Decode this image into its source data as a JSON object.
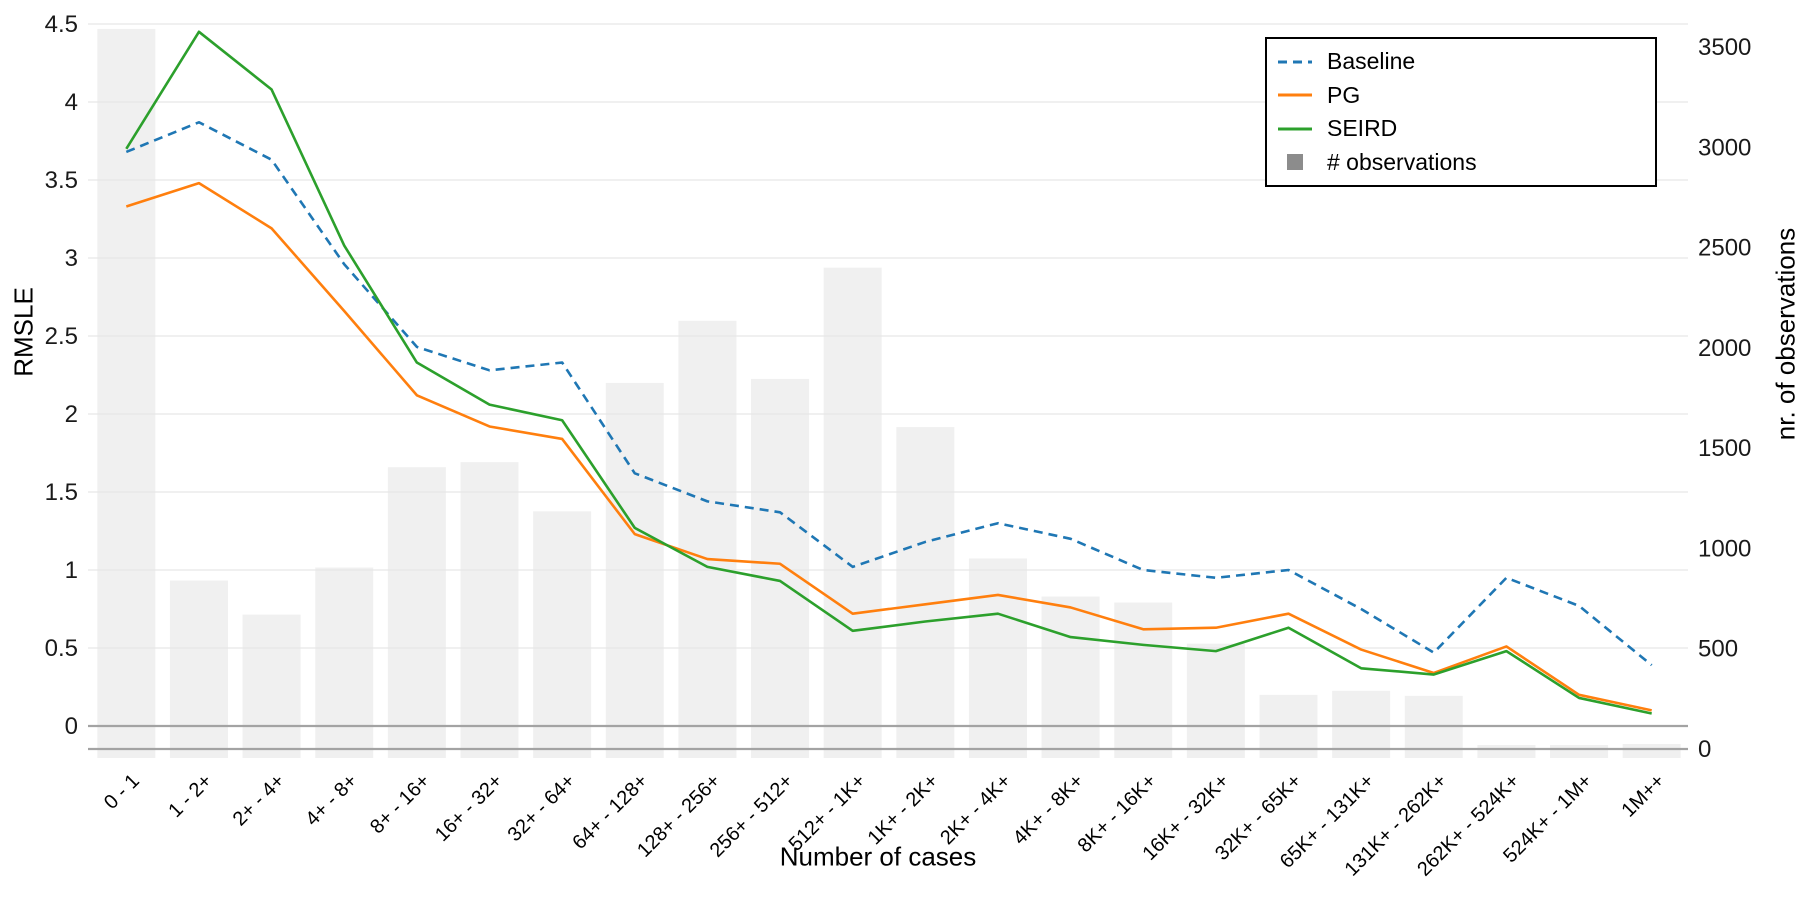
{
  "chart_data": {
    "type": "line-bar-combo",
    "title": "",
    "categories": [
      "0 - 1",
      "1 - 2+",
      "2+ - 4+",
      "4+ - 8+",
      "8+ - 16+",
      "16+ - 32+",
      "32+ - 64+",
      "64+ - 128+",
      "128+ - 256+",
      "256+ - 512+",
      "512+ - 1K+",
      "1K+ - 2K+",
      "2K+ - 4K+",
      "4K+ - 8K+",
      "8K+ - 16K+",
      "16K+ - 32K+",
      "32K+ - 65K+",
      "65K+ - 131K+",
      "131K+ - 262K+",
      "262K+ - 524K+",
      "524K+ - 1M+",
      "1M++"
    ],
    "series": [
      {
        "name": "Baseline",
        "type": "line",
        "line_style": "dashed",
        "color": "#1f77b4",
        "axis": "left",
        "values": [
          3.68,
          3.87,
          3.63,
          2.96,
          2.43,
          2.28,
          2.33,
          1.62,
          1.44,
          1.37,
          1.02,
          1.18,
          1.3,
          1.2,
          1.0,
          0.95,
          1.0,
          0.75,
          0.47,
          0.95,
          0.77,
          0.39
        ]
      },
      {
        "name": "PG",
        "type": "line",
        "line_style": "solid",
        "color": "#ff7f0e",
        "axis": "left",
        "values": [
          3.33,
          3.48,
          3.19,
          2.66,
          2.12,
          1.92,
          1.84,
          1.23,
          1.07,
          1.04,
          0.72,
          0.78,
          0.84,
          0.76,
          0.62,
          0.63,
          0.72,
          0.49,
          0.34,
          0.51,
          0.2,
          0.1
        ]
      },
      {
        "name": "SEIRD",
        "type": "line",
        "line_style": "solid",
        "color": "#2ca02c",
        "axis": "left",
        "values": [
          3.7,
          4.45,
          4.08,
          3.08,
          2.33,
          2.06,
          1.96,
          1.27,
          1.02,
          0.93,
          0.61,
          0.67,
          0.72,
          0.57,
          0.52,
          0.48,
          0.63,
          0.37,
          0.33,
          0.48,
          0.18,
          0.08
        ]
      },
      {
        "name": "# observations",
        "type": "bar",
        "color": "#f0f0f0",
        "axis": "right",
        "values": [
          3590,
          840,
          670,
          905,
          1405,
          1430,
          1185,
          1825,
          2135,
          1845,
          2400,
          1605,
          950,
          760,
          730,
          525,
          270,
          290,
          265,
          20,
          20,
          25
        ]
      }
    ],
    "left_axis": {
      "label": "RMSLE",
      "ticks": [
        0,
        0.5,
        1,
        1.5,
        2,
        2.5,
        3,
        3.5,
        4,
        4.5
      ]
    },
    "right_axis": {
      "label": "nr. of observations",
      "ticks": [
        0,
        500,
        1000,
        1500,
        2000,
        2500,
        3000,
        3500
      ]
    },
    "xlabel": "Number of cases",
    "legend": {
      "position": "upper right"
    },
    "grid": true,
    "style": {
      "grid_color": "#e7e7e7",
      "zero_line_color": "#a3a3a3",
      "bar_color": "#f0f0f0",
      "tick_text_color": "#1a1a1a",
      "background": "#ffffff",
      "legend_square_color": "#8c8c8c"
    }
  }
}
